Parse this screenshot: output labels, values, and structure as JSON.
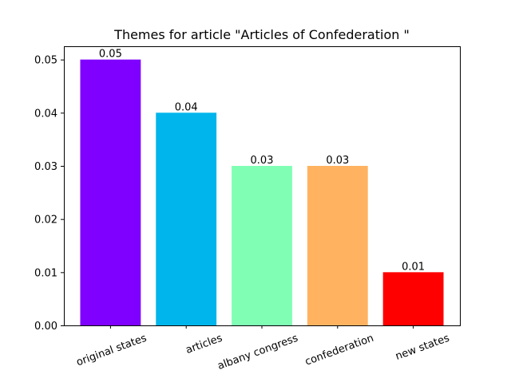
{
  "chart_data": {
    "type": "bar",
    "title": "Themes for article \"Articles of Confederation \"",
    "xlabel": "",
    "ylabel": "",
    "categories": [
      "original states",
      "articles",
      "albany congress",
      "confederation",
      "new states"
    ],
    "values": [
      0.05,
      0.04,
      0.03,
      0.03,
      0.01
    ],
    "data_labels": [
      "0.05",
      "0.04",
      "0.03",
      "0.03",
      "0.01"
    ],
    "colors": [
      "#8000ff",
      "#00b5eb",
      "#80ffb4",
      "#ffb360",
      "#ff0000"
    ],
    "ylim": [
      0,
      0.0525
    ],
    "yticks": [
      0,
      0.01,
      0.02,
      0.03,
      0.04,
      0.05
    ],
    "ytick_labels": [
      "0.00",
      "0.01",
      "0.02",
      "0.03",
      "0.04",
      "0.05"
    ],
    "grid": false,
    "legend": "none"
  }
}
